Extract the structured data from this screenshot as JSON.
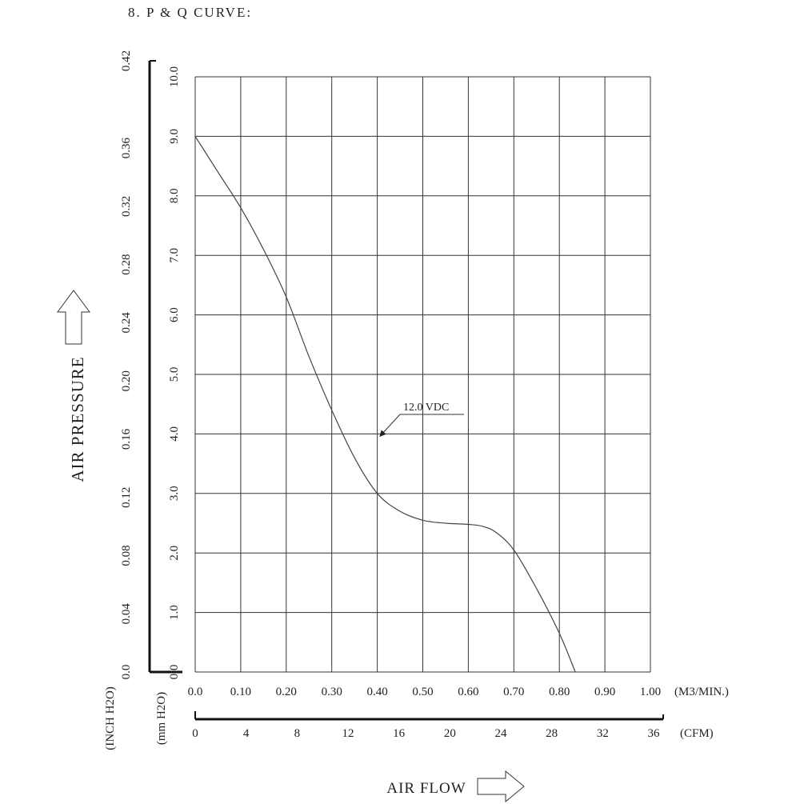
{
  "section_title": "8. P & Q CURVE:",
  "chart_data": {
    "type": "line",
    "title": "",
    "ylabel": "AIR PRESSURE",
    "xlabel": "AIR FLOW",
    "y_primary": {
      "unit_label": "(mm H2O)",
      "range": [
        0,
        10
      ],
      "ticks": [
        "0.0",
        "1.0",
        "2.0",
        "3.0",
        "4.0",
        "5.0",
        "6.0",
        "7.0",
        "8.0",
        "9.0",
        "10.0"
      ]
    },
    "y_secondary": {
      "unit_label": "(INCH H2O)",
      "range": [
        0,
        0.42
      ],
      "ticks": [
        "0.0",
        "0.04",
        "0.08",
        "0.12",
        "0.16",
        "0.20",
        "0.24",
        "0.28",
        "0.32",
        "0.36",
        "0.42"
      ]
    },
    "x_primary": {
      "unit_label": "(M3/MIN.)",
      "range": [
        0,
        1.0
      ],
      "ticks": [
        "0.0",
        "0.10",
        "0.20",
        "0.30",
        "0.40",
        "0.50",
        "0.60",
        "0.70",
        "0.80",
        "0.90",
        "1.00"
      ]
    },
    "x_secondary": {
      "unit_label": "(CFM)",
      "range": [
        0,
        36
      ],
      "ticks": [
        "0",
        "4",
        "8",
        "12",
        "16",
        "20",
        "24",
        "28",
        "32",
        "36"
      ]
    },
    "grid": true,
    "series": [
      {
        "name": "12.0 VDC",
        "x": [
          0.0,
          0.05,
          0.1,
          0.15,
          0.2,
          0.25,
          0.3,
          0.35,
          0.4,
          0.45,
          0.5,
          0.55,
          0.6,
          0.63,
          0.66,
          0.7,
          0.75,
          0.8,
          0.835
        ],
        "y": [
          9.0,
          8.4,
          7.8,
          7.1,
          6.3,
          5.3,
          4.4,
          3.6,
          3.0,
          2.7,
          2.55,
          2.5,
          2.48,
          2.45,
          2.35,
          2.05,
          1.4,
          0.65,
          0.0
        ]
      }
    ]
  }
}
